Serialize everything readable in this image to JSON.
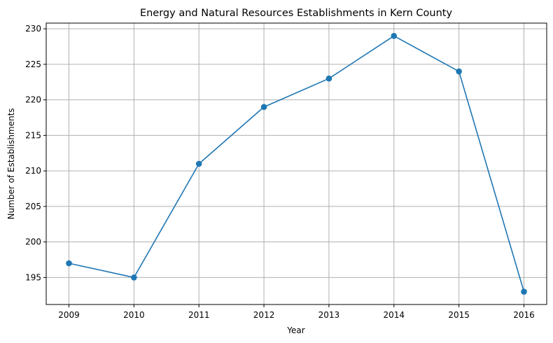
{
  "chart_data": {
    "type": "line",
    "title": "Energy and Natural Resources Establishments in Kern County",
    "xlabel": "Year",
    "ylabel": "Number of Establishments",
    "x": [
      "2009",
      "2010",
      "2011",
      "2012",
      "2013",
      "2014",
      "2015",
      "2016"
    ],
    "series": [
      {
        "values": [
          197,
          195,
          211,
          219,
          223,
          229,
          224,
          193
        ]
      }
    ],
    "y_ticks": [
      195,
      200,
      205,
      210,
      215,
      220,
      225,
      230
    ],
    "xlim": [
      2008.65,
      2016.35
    ],
    "ylim": [
      191.2,
      230.8
    ],
    "grid": true,
    "marker": "circle",
    "colors": {
      "line": "#1f77b4",
      "grid": "#b0b0b0",
      "axis": "#000000"
    }
  }
}
